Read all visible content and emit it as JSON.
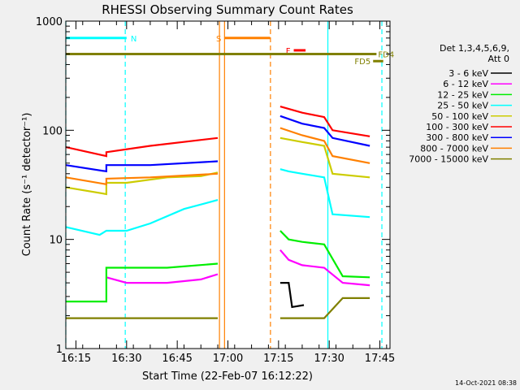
{
  "chart_data": {
    "type": "line",
    "title": "RHESSI Observing Summary Count Rates",
    "xlabel": "Start Time (22-Feb-07 16:12:22)",
    "ylabel": "Count Rate (s⁻¹ detector⁻¹)",
    "y_scale": "log",
    "ylim": [
      1,
      1000
    ],
    "xlim_minutes_from_1612": [
      0,
      96
    ],
    "x_ticks": [
      {
        "label": "16:15",
        "t": 3
      },
      {
        "label": "16:30",
        "t": 18
      },
      {
        "label": "16:45",
        "t": 33
      },
      {
        "label": "17:00",
        "t": 48
      },
      {
        "label": "17:15",
        "t": 63
      },
      {
        "label": "17:30",
        "t": 78
      },
      {
        "label": "17:45",
        "t": 93
      }
    ],
    "y_ticks": [
      {
        "label": "1",
        "v": 1
      },
      {
        "label": "10",
        "v": 10
      },
      {
        "label": "100",
        "v": 100
      },
      {
        "label": "1000",
        "v": 1000
      }
    ],
    "legend_header": [
      "Det 1,3,4,5,6,9,",
      "Att 0"
    ],
    "series": [
      {
        "name": "3 - 6 keV",
        "color": "#000000",
        "segments": [
          [
            [
              63.5,
              4
            ],
            [
              66,
              4
            ],
            [
              67,
              2.4
            ],
            [
              70.5,
              2.5
            ]
          ]
        ]
      },
      {
        "name": "6 - 12 keV",
        "color": "#ff00ff",
        "segments": [
          [
            [
              12,
              4.5
            ],
            [
              18,
              4
            ],
            [
              20,
              4
            ],
            [
              30,
              4
            ],
            [
              40,
              4.3
            ],
            [
              45,
              4.8
            ]
          ],
          [
            [
              63.5,
              8
            ],
            [
              66,
              6.5
            ],
            [
              70,
              5.8
            ],
            [
              76.5,
              5.5
            ],
            [
              82,
              4
            ],
            [
              90,
              3.8
            ]
          ]
        ]
      },
      {
        "name": "12 - 25 keV",
        "color": "#00ee00",
        "segments": [
          [
            [
              0,
              2.7
            ],
            [
              12,
              2.7
            ],
            [
              12,
              5.5
            ],
            [
              30,
              5.5
            ],
            [
              45,
              6
            ]
          ],
          [
            [
              63.5,
              12
            ],
            [
              66,
              10
            ],
            [
              70,
              9.5
            ],
            [
              76.5,
              9
            ],
            [
              82,
              4.6
            ],
            [
              90,
              4.5
            ]
          ]
        ]
      },
      {
        "name": "25 - 50 keV",
        "color": "#00ffff",
        "segments": [
          [
            [
              0,
              13
            ],
            [
              10,
              11
            ],
            [
              12,
              12
            ],
            [
              18,
              12
            ],
            [
              25,
              14
            ],
            [
              35,
              19
            ],
            [
              45,
              23
            ]
          ],
          [
            [
              63.5,
              44
            ],
            [
              66,
              42
            ],
            [
              70,
              40
            ],
            [
              76.5,
              37
            ],
            [
              79,
              17
            ],
            [
              90,
              16
            ]
          ]
        ]
      },
      {
        "name": "50 - 100 keV",
        "color": "#cccc00",
        "segments": [
          [
            [
              0,
              30
            ],
            [
              12,
              26
            ],
            [
              12,
              33
            ],
            [
              18,
              33
            ],
            [
              30,
              37
            ],
            [
              40,
              38
            ],
            [
              45,
              41
            ]
          ],
          [
            [
              63.5,
              85
            ],
            [
              70,
              78
            ],
            [
              76.5,
              72
            ],
            [
              79,
              40
            ],
            [
              90,
              37
            ]
          ]
        ]
      },
      {
        "name": "100 - 300 keV",
        "color": "#ff0000",
        "segments": [
          [
            [
              0,
              70
            ],
            [
              12,
              58
            ],
            [
              12,
              63
            ],
            [
              25,
              72
            ],
            [
              45,
              85
            ]
          ],
          [
            [
              63.5,
              165
            ],
            [
              70,
              145
            ],
            [
              76.5,
              132
            ],
            [
              79,
              100
            ],
            [
              90,
              88
            ]
          ]
        ]
      },
      {
        "name": "300 - 800 keV",
        "color": "#0000ff",
        "segments": [
          [
            [
              0,
              48
            ],
            [
              12,
              42
            ],
            [
              12,
              48
            ],
            [
              25,
              48
            ],
            [
              45,
              52
            ]
          ],
          [
            [
              63.5,
              135
            ],
            [
              70,
              115
            ],
            [
              76.5,
              105
            ],
            [
              79,
              85
            ],
            [
              90,
              72
            ]
          ]
        ]
      },
      {
        "name": "800 - 7000 keV",
        "color": "#ff8000",
        "segments": [
          [
            [
              0,
              37
            ],
            [
              12,
              32
            ],
            [
              12,
              36
            ],
            [
              25,
              37
            ],
            [
              45,
              40
            ]
          ],
          [
            [
              63.5,
              105
            ],
            [
              70,
              90
            ],
            [
              76.5,
              80
            ],
            [
              79,
              58
            ],
            [
              90,
              50
            ]
          ]
        ]
      },
      {
        "name": "7000 - 15000 keV",
        "color": "#808000",
        "segments": [
          [
            [
              0,
              1.9
            ],
            [
              45,
              1.9
            ]
          ],
          [
            [
              63.5,
              1.9
            ],
            [
              76.5,
              1.9
            ],
            [
              82,
              2.9
            ],
            [
              90,
              2.9
            ]
          ]
        ]
      }
    ],
    "flag_bars": [
      {
        "label": "N",
        "color": "#00ffff",
        "segments": [
          [
            0,
            18
          ]
        ]
      },
      {
        "label": "S",
        "color": "#ff8000",
        "segments": [
          [
            47,
            60.5
          ]
        ]
      },
      {
        "label": "F",
        "color": "#ff0000",
        "segments": [
          [
            67.5,
            71
          ]
        ]
      },
      {
        "label": "FD4",
        "color": "#808000",
        "segments": [
          [
            0,
            92
          ]
        ]
      },
      {
        "label": "FD5",
        "color": "#808000",
        "segments": [
          [
            91,
            94
          ]
        ]
      }
    ],
    "marker_lines": [
      {
        "t": 0,
        "color": "#00ffff",
        "style": "dashed"
      },
      {
        "t": 17.6,
        "color": "#00ffff",
        "style": "dashed"
      },
      {
        "t": 45.5,
        "color": "#ff8000",
        "style": "solid"
      },
      {
        "t": 47,
        "color": "#ff8000",
        "style": "solid"
      },
      {
        "t": 60.6,
        "color": "#ff8000",
        "style": "dashed"
      },
      {
        "t": 77.6,
        "color": "#00ffff",
        "style": "solid"
      },
      {
        "t": 93.6,
        "color": "#00ffff",
        "style": "dashed"
      }
    ]
  },
  "timestamp": "14-Oct-2021 08:38"
}
